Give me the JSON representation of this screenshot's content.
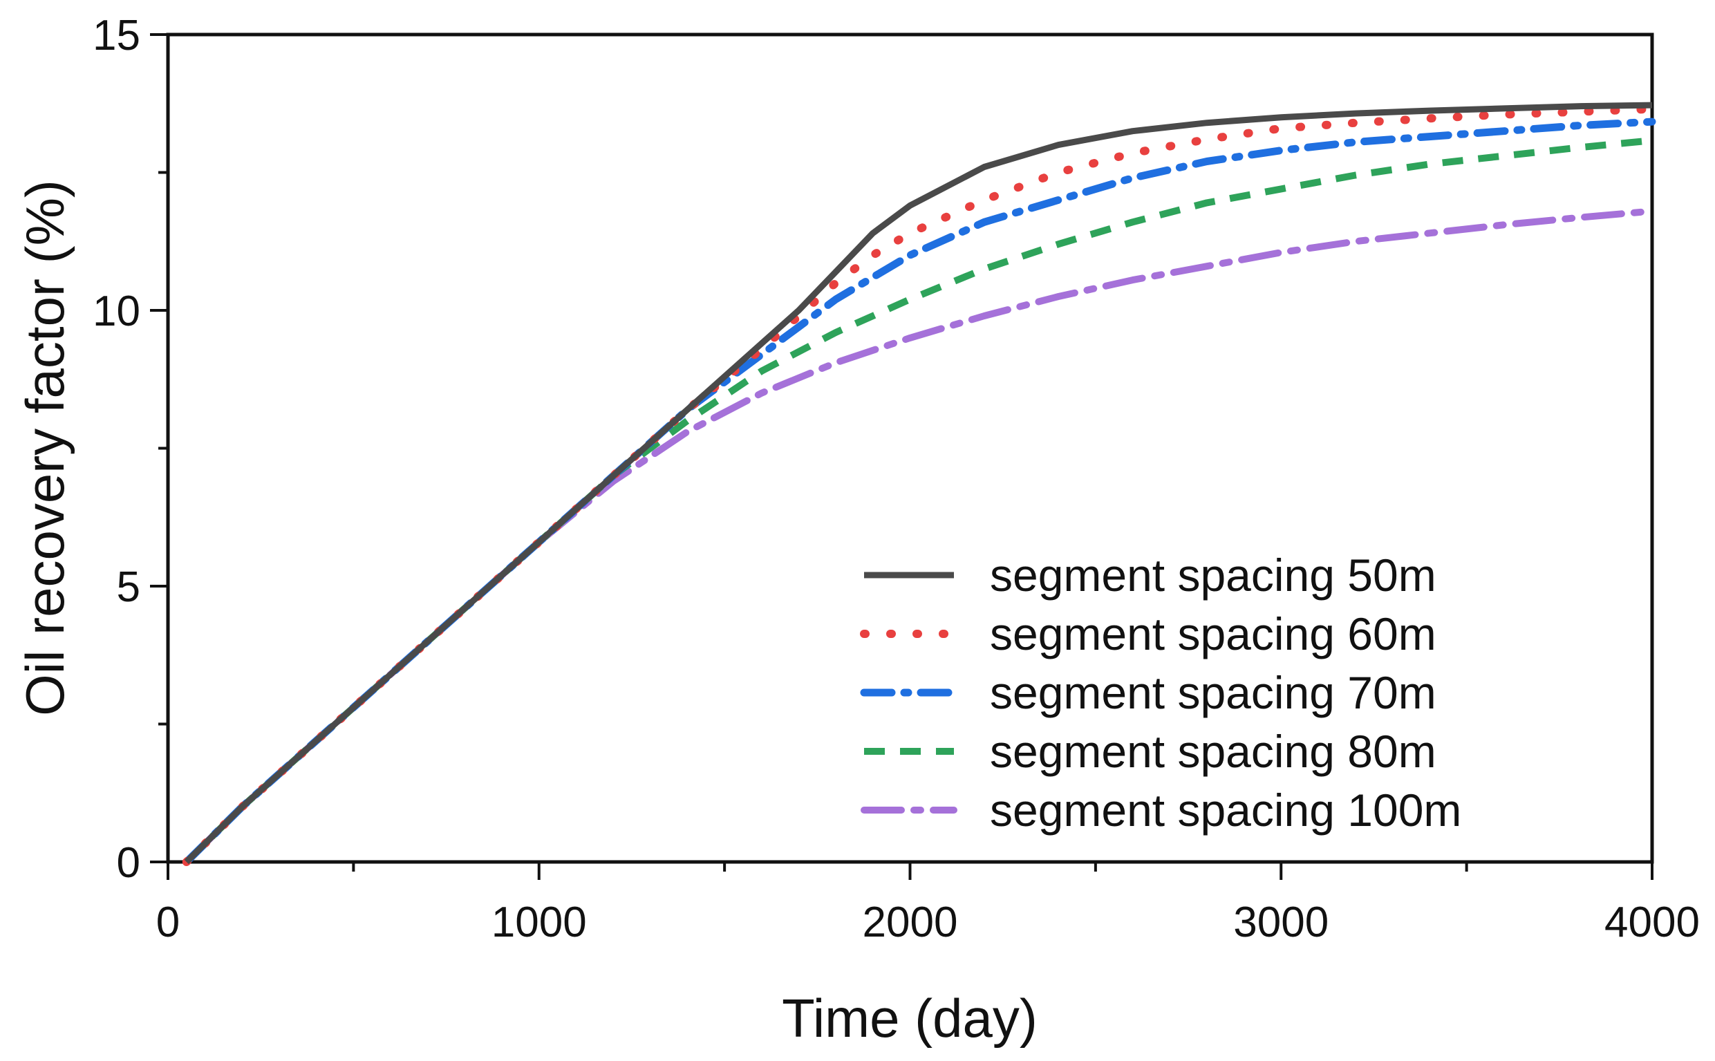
{
  "chart_data": {
    "type": "line",
    "title": "",
    "xlabel": "Time (day)",
    "ylabel": "Oil recovery factor (%)",
    "xlim": [
      0,
      4000
    ],
    "ylim": [
      0,
      15
    ],
    "xticks": [
      0,
      1000,
      2000,
      3000,
      4000
    ],
    "yticks": [
      0,
      5,
      10,
      15
    ],
    "grid": false,
    "legend_position": "bottom-right",
    "series": [
      {
        "name": "segment spacing 50m",
        "color": "#4a4a4a",
        "style": "solid",
        "x": [
          50,
          200,
          400,
          600,
          800,
          1000,
          1200,
          1400,
          1600,
          1700,
          1800,
          1900,
          2000,
          2200,
          2400,
          2600,
          2800,
          3000,
          3200,
          3400,
          3600,
          3800,
          4000
        ],
        "y": [
          0,
          1.0,
          2.2,
          3.4,
          4.6,
          5.8,
          7.0,
          8.2,
          9.4,
          10.0,
          10.7,
          11.4,
          11.9,
          12.6,
          13.0,
          13.25,
          13.4,
          13.5,
          13.57,
          13.62,
          13.66,
          13.7,
          13.72
        ]
      },
      {
        "name": "segment spacing 60m",
        "color": "#e8403f",
        "style": "dotted",
        "x": [
          50,
          200,
          400,
          600,
          800,
          1000,
          1200,
          1400,
          1600,
          1700,
          1800,
          1900,
          2000,
          2200,
          2400,
          2600,
          2800,
          3000,
          3200,
          3400,
          3600,
          3800,
          4000
        ],
        "y": [
          0,
          1.0,
          2.2,
          3.4,
          4.6,
          5.8,
          7.0,
          8.2,
          9.3,
          9.9,
          10.5,
          11.0,
          11.4,
          12.0,
          12.5,
          12.85,
          13.1,
          13.3,
          13.4,
          13.48,
          13.55,
          13.6,
          13.65
        ]
      },
      {
        "name": "segment spacing 70m",
        "color": "#1f6fe0",
        "style": "dashdot",
        "x": [
          50,
          200,
          400,
          600,
          800,
          1000,
          1200,
          1400,
          1600,
          1700,
          1800,
          1900,
          2000,
          2200,
          2400,
          2600,
          2800,
          3000,
          3200,
          3400,
          3600,
          3800,
          4000
        ],
        "y": [
          0,
          1.0,
          2.2,
          3.4,
          4.6,
          5.8,
          7.0,
          8.2,
          9.2,
          9.7,
          10.2,
          10.6,
          11.0,
          11.6,
          12.0,
          12.4,
          12.7,
          12.9,
          13.05,
          13.15,
          13.25,
          13.35,
          13.42
        ]
      },
      {
        "name": "segment spacing 80m",
        "color": "#2ea35a",
        "style": "dashed",
        "x": [
          50,
          200,
          400,
          600,
          800,
          1000,
          1200,
          1400,
          1600,
          1800,
          2000,
          2200,
          2400,
          2600,
          2800,
          3000,
          3200,
          3400,
          3600,
          3800,
          4000
        ],
        "y": [
          0,
          1.0,
          2.2,
          3.4,
          4.6,
          5.8,
          7.0,
          8.0,
          8.9,
          9.6,
          10.2,
          10.75,
          11.2,
          11.6,
          11.95,
          12.2,
          12.45,
          12.65,
          12.8,
          12.95,
          13.08
        ]
      },
      {
        "name": "segment spacing 100m",
        "color": "#a571d9",
        "style": "dashdot-long",
        "x": [
          50,
          200,
          400,
          600,
          800,
          1000,
          1200,
          1400,
          1600,
          1800,
          2000,
          2200,
          2400,
          2600,
          2800,
          3000,
          3200,
          3400,
          3600,
          3800,
          4000
        ],
        "y": [
          0,
          1.0,
          2.2,
          3.4,
          4.6,
          5.8,
          6.9,
          7.8,
          8.5,
          9.05,
          9.5,
          9.9,
          10.25,
          10.55,
          10.8,
          11.05,
          11.25,
          11.4,
          11.55,
          11.68,
          11.8
        ]
      }
    ]
  }
}
